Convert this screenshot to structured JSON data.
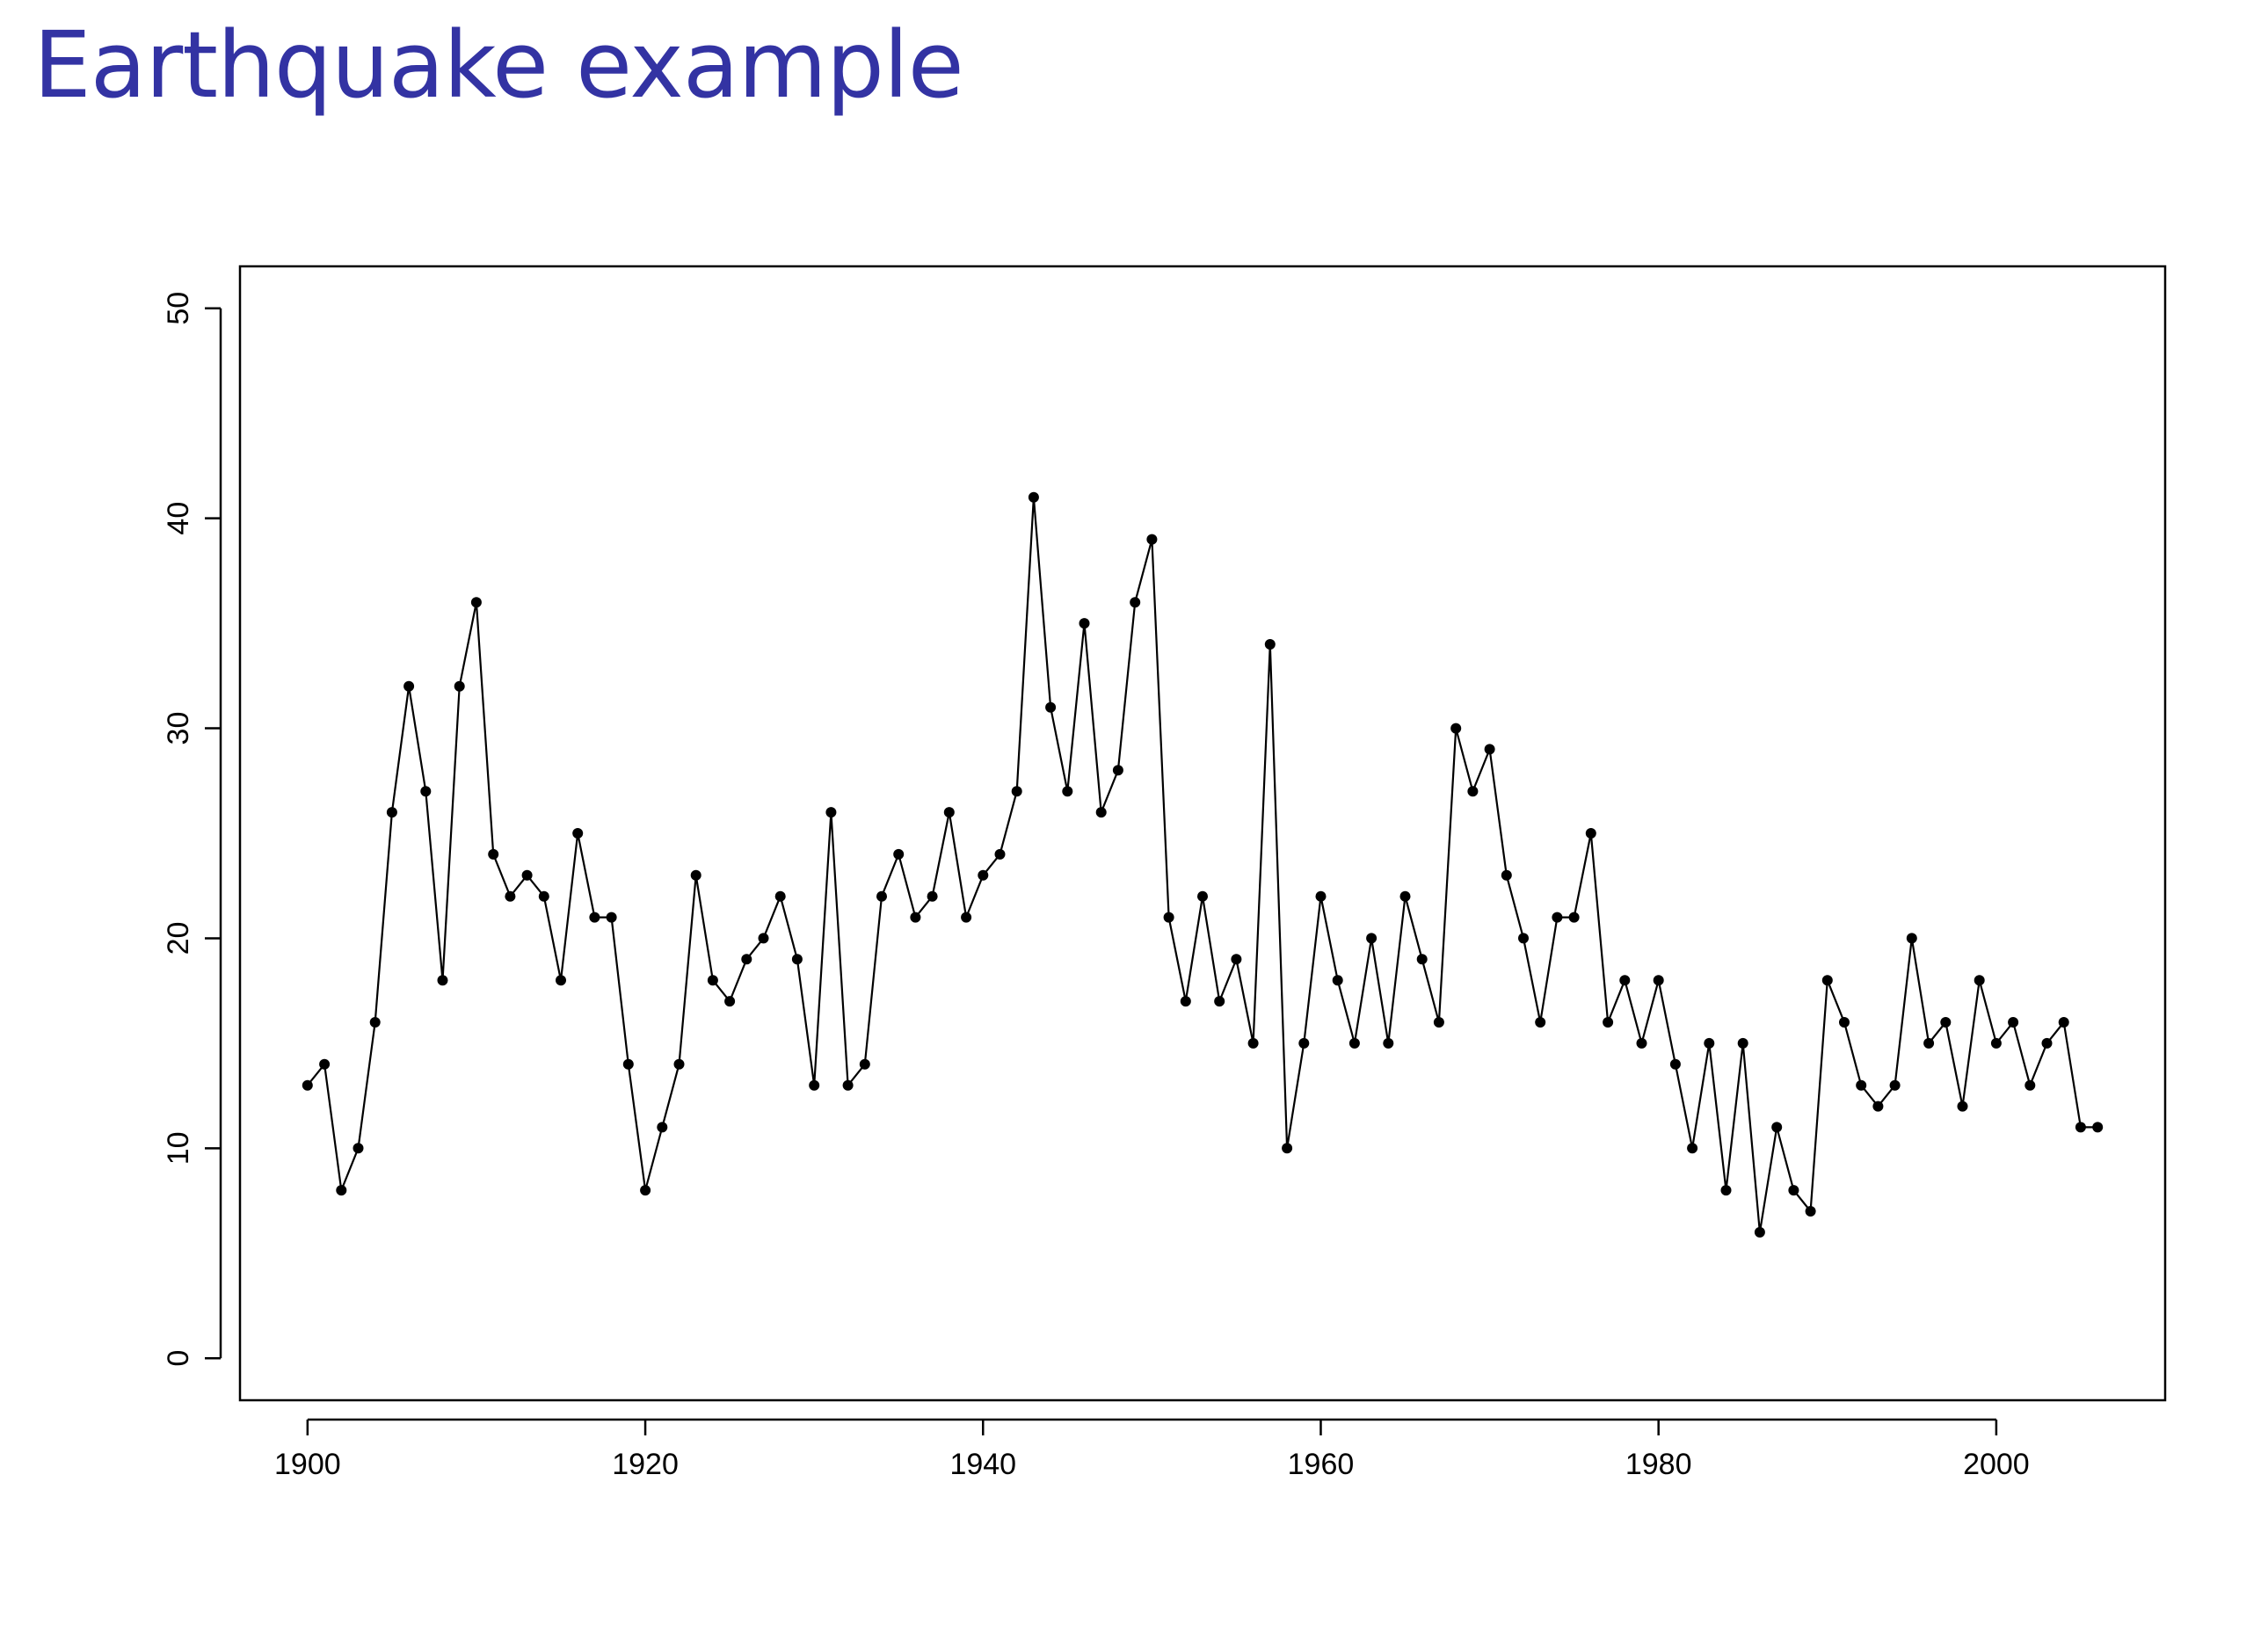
{
  "title": "Earthquake example",
  "colors": {
    "title": "#3333a3",
    "line": "#000000",
    "point": "#000000"
  },
  "chart_data": {
    "type": "line",
    "title": "",
    "xlabel": "",
    "ylabel": "",
    "xlim": [
      1896,
      2010
    ],
    "ylim": [
      -2,
      52
    ],
    "x_ticks": [
      1900,
      1920,
      1940,
      1960,
      1980,
      2000
    ],
    "y_ticks": [
      0,
      10,
      20,
      30,
      40,
      50
    ],
    "grid": false,
    "legend": "none",
    "markers": true,
    "series": [
      {
        "x": [
          1900,
          1901,
          1902,
          1903,
          1904,
          1905,
          1906,
          1907,
          1908,
          1909,
          1910,
          1911,
          1912,
          1913,
          1914,
          1915,
          1916,
          1917,
          1918,
          1919,
          1920,
          1921,
          1922,
          1923,
          1924,
          1925,
          1926,
          1927,
          1928,
          1929,
          1930,
          1931,
          1932,
          1933,
          1934,
          1935,
          1936,
          1937,
          1938,
          1939,
          1940,
          1941,
          1942,
          1943,
          1944,
          1945,
          1946,
          1947,
          1948,
          1949,
          1950,
          1951,
          1952,
          1953,
          1954,
          1955,
          1956,
          1957,
          1958,
          1959,
          1960,
          1961,
          1962,
          1963,
          1964,
          1965,
          1966,
          1967,
          1968,
          1969,
          1970,
          1971,
          1972,
          1973,
          1974,
          1975,
          1976,
          1977,
          1978,
          1979,
          1980,
          1981,
          1982,
          1983,
          1984,
          1985,
          1986,
          1987,
          1988,
          1989,
          1990,
          1991,
          1992,
          1993,
          1994,
          1995,
          1996,
          1997,
          1998,
          1999,
          2000,
          2001,
          2002,
          2003,
          2004,
          2005,
          2006
        ],
        "values": [
          13,
          14,
          8,
          10,
          16,
          26,
          32,
          27,
          18,
          32,
          36,
          24,
          22,
          23,
          22,
          18,
          25,
          21,
          21,
          14,
          8,
          11,
          14,
          23,
          18,
          17,
          19,
          20,
          22,
          19,
          13,
          26,
          13,
          14,
          22,
          24,
          21,
          22,
          26,
          21,
          23,
          24,
          27,
          41,
          31,
          27,
          35,
          26,
          28,
          36,
          39,
          21,
          17,
          22,
          17,
          19,
          15,
          34,
          10,
          15,
          22,
          18,
          15,
          20,
          15,
          22,
          19,
          16,
          30,
          27,
          29,
          23,
          20,
          16,
          21,
          21,
          25,
          16,
          18,
          15,
          18,
          14,
          10,
          15,
          8,
          15,
          6,
          11,
          8,
          7,
          18,
          16,
          13,
          12,
          13,
          20,
          15,
          16,
          12,
          18,
          15,
          16,
          13,
          15,
          16,
          11,
          11
        ]
      }
    ]
  }
}
